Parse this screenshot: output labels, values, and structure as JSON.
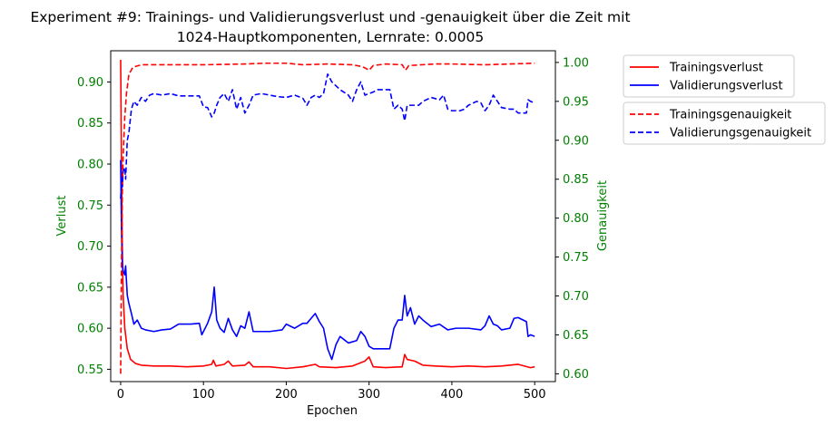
{
  "chart_data": {
    "type": "line",
    "title": "Experiment #9: Trainings- und Validierungsverlust und -genauigkeit über die Zeit mit",
    "subtitle": "1024-Hauptkomponenten, Lernrate: 0.0005",
    "xlabel": "Epochen",
    "ylabel_left": "Verlust",
    "ylabel_right": "Genauigkeit",
    "xlim": [
      -12,
      525
    ],
    "ylim_left": [
      0.535,
      0.938
    ],
    "ylim_right": [
      0.59,
      1.015
    ],
    "x_ticks": [
      0,
      100,
      200,
      300,
      400,
      500
    ],
    "y_ticks_left": [
      0.55,
      0.6,
      0.65,
      0.7,
      0.75,
      0.8,
      0.85,
      0.9
    ],
    "y_ticks_right": [
      0.6,
      0.65,
      0.7,
      0.75,
      0.8,
      0.85,
      0.9,
      0.95,
      1.0
    ],
    "axis_label_color": "#008000",
    "grid": false,
    "legend_placement": "outside-right",
    "series": [
      {
        "name": "Trainingsverlust",
        "axis": "left",
        "color": "#ff0000",
        "dash": "solid",
        "points": [
          [
            0,
            0.927
          ],
          [
            1,
            0.8
          ],
          [
            2,
            0.7
          ],
          [
            3,
            0.64
          ],
          [
            5,
            0.6
          ],
          [
            8,
            0.575
          ],
          [
            12,
            0.562
          ],
          [
            18,
            0.557
          ],
          [
            25,
            0.555
          ],
          [
            40,
            0.554
          ],
          [
            60,
            0.554
          ],
          [
            80,
            0.553
          ],
          [
            100,
            0.554
          ],
          [
            110,
            0.556
          ],
          [
            112,
            0.561
          ],
          [
            115,
            0.554
          ],
          [
            125,
            0.556
          ],
          [
            130,
            0.56
          ],
          [
            135,
            0.554
          ],
          [
            150,
            0.555
          ],
          [
            155,
            0.559
          ],
          [
            160,
            0.553
          ],
          [
            180,
            0.553
          ],
          [
            200,
            0.551
          ],
          [
            220,
            0.553
          ],
          [
            235,
            0.556
          ],
          [
            240,
            0.553
          ],
          [
            260,
            0.552
          ],
          [
            280,
            0.554
          ],
          [
            295,
            0.56
          ],
          [
            300,
            0.565
          ],
          [
            305,
            0.553
          ],
          [
            320,
            0.552
          ],
          [
            340,
            0.553
          ],
          [
            343,
            0.568
          ],
          [
            346,
            0.562
          ],
          [
            355,
            0.56
          ],
          [
            365,
            0.555
          ],
          [
            380,
            0.554
          ],
          [
            400,
            0.553
          ],
          [
            420,
            0.554
          ],
          [
            440,
            0.553
          ],
          [
            460,
            0.554
          ],
          [
            480,
            0.556
          ],
          [
            495,
            0.552
          ],
          [
            500,
            0.553
          ]
        ]
      },
      {
        "name": "Validierungsverlust",
        "axis": "left",
        "color": "#0000ff",
        "dash": "solid",
        "points": [
          [
            0,
            0.805
          ],
          [
            1,
            0.72
          ],
          [
            2,
            0.68
          ],
          [
            3,
            0.67
          ],
          [
            5,
            0.665
          ],
          [
            6,
            0.676
          ],
          [
            8,
            0.64
          ],
          [
            10,
            0.63
          ],
          [
            13,
            0.618
          ],
          [
            16,
            0.605
          ],
          [
            20,
            0.61
          ],
          [
            25,
            0.6
          ],
          [
            30,
            0.598
          ],
          [
            40,
            0.596
          ],
          [
            50,
            0.598
          ],
          [
            60,
            0.599
          ],
          [
            70,
            0.605
          ],
          [
            85,
            0.605
          ],
          [
            95,
            0.606
          ],
          [
            98,
            0.592
          ],
          [
            100,
            0.596
          ],
          [
            105,
            0.606
          ],
          [
            110,
            0.62
          ],
          [
            113,
            0.65
          ],
          [
            116,
            0.61
          ],
          [
            120,
            0.6
          ],
          [
            125,
            0.595
          ],
          [
            130,
            0.612
          ],
          [
            135,
            0.598
          ],
          [
            140,
            0.59
          ],
          [
            145,
            0.603
          ],
          [
            150,
            0.6
          ],
          [
            155,
            0.62
          ],
          [
            160,
            0.596
          ],
          [
            170,
            0.596
          ],
          [
            180,
            0.596
          ],
          [
            195,
            0.598
          ],
          [
            200,
            0.605
          ],
          [
            210,
            0.6
          ],
          [
            220,
            0.606
          ],
          [
            225,
            0.606
          ],
          [
            230,
            0.612
          ],
          [
            235,
            0.618
          ],
          [
            240,
            0.608
          ],
          [
            245,
            0.6
          ],
          [
            250,
            0.575
          ],
          [
            255,
            0.562
          ],
          [
            260,
            0.58
          ],
          [
            265,
            0.59
          ],
          [
            275,
            0.582
          ],
          [
            285,
            0.585
          ],
          [
            290,
            0.596
          ],
          [
            295,
            0.59
          ],
          [
            300,
            0.578
          ],
          [
            305,
            0.575
          ],
          [
            315,
            0.575
          ],
          [
            325,
            0.575
          ],
          [
            330,
            0.6
          ],
          [
            335,
            0.61
          ],
          [
            340,
            0.61
          ],
          [
            343,
            0.64
          ],
          [
            346,
            0.615
          ],
          [
            350,
            0.625
          ],
          [
            355,
            0.605
          ],
          [
            360,
            0.615
          ],
          [
            365,
            0.61
          ],
          [
            375,
            0.602
          ],
          [
            385,
            0.605
          ],
          [
            395,
            0.598
          ],
          [
            405,
            0.6
          ],
          [
            420,
            0.6
          ],
          [
            435,
            0.598
          ],
          [
            440,
            0.603
          ],
          [
            445,
            0.615
          ],
          [
            450,
            0.605
          ],
          [
            455,
            0.603
          ],
          [
            460,
            0.598
          ],
          [
            470,
            0.6
          ],
          [
            475,
            0.612
          ],
          [
            480,
            0.613
          ],
          [
            490,
            0.608
          ],
          [
            492,
            0.59
          ],
          [
            495,
            0.592
          ],
          [
            500,
            0.59
          ]
        ]
      },
      {
        "name": "Trainingsgenauigkeit",
        "axis": "right",
        "color": "#ff0000",
        "dash": "dashed",
        "points": [
          [
            0,
            0.6
          ],
          [
            1,
            0.74
          ],
          [
            2,
            0.83
          ],
          [
            3,
            0.88
          ],
          [
            5,
            0.93
          ],
          [
            7,
            0.96
          ],
          [
            10,
            0.985
          ],
          [
            15,
            0.994
          ],
          [
            25,
            0.997
          ],
          [
            50,
            0.997
          ],
          [
            100,
            0.997
          ],
          [
            150,
            0.998
          ],
          [
            175,
            0.999
          ],
          [
            200,
            0.999
          ],
          [
            220,
            0.997
          ],
          [
            250,
            0.998
          ],
          [
            280,
            0.997
          ],
          [
            290,
            0.995
          ],
          [
            295,
            0.993
          ],
          [
            300,
            0.99
          ],
          [
            305,
            0.996
          ],
          [
            320,
            0.998
          ],
          [
            340,
            0.997
          ],
          [
            344,
            0.99
          ],
          [
            348,
            0.996
          ],
          [
            380,
            0.998
          ],
          [
            400,
            0.998
          ],
          [
            440,
            0.997
          ],
          [
            470,
            0.998
          ],
          [
            500,
            0.999
          ]
        ]
      },
      {
        "name": "Validierungsgenauigkeit",
        "axis": "right",
        "color": "#0000ff",
        "dash": "dashed",
        "points": [
          [
            0,
            0.825
          ],
          [
            1,
            0.85
          ],
          [
            2,
            0.84
          ],
          [
            3,
            0.86
          ],
          [
            5,
            0.865
          ],
          [
            6,
            0.85
          ],
          [
            8,
            0.9
          ],
          [
            10,
            0.91
          ],
          [
            13,
            0.94
          ],
          [
            16,
            0.95
          ],
          [
            20,
            0.945
          ],
          [
            25,
            0.955
          ],
          [
            30,
            0.95
          ],
          [
            35,
            0.958
          ],
          [
            40,
            0.96
          ],
          [
            50,
            0.958
          ],
          [
            60,
            0.96
          ],
          [
            70,
            0.957
          ],
          [
            85,
            0.957
          ],
          [
            95,
            0.957
          ],
          [
            100,
            0.943
          ],
          [
            105,
            0.942
          ],
          [
            110,
            0.93
          ],
          [
            113,
            0.935
          ],
          [
            116,
            0.945
          ],
          [
            120,
            0.955
          ],
          [
            125,
            0.96
          ],
          [
            130,
            0.95
          ],
          [
            135,
            0.965
          ],
          [
            140,
            0.94
          ],
          [
            145,
            0.955
          ],
          [
            150,
            0.935
          ],
          [
            155,
            0.945
          ],
          [
            160,
            0.958
          ],
          [
            170,
            0.96
          ],
          [
            180,
            0.958
          ],
          [
            190,
            0.956
          ],
          [
            200,
            0.955
          ],
          [
            210,
            0.958
          ],
          [
            220,
            0.954
          ],
          [
            225,
            0.945
          ],
          [
            230,
            0.955
          ],
          [
            235,
            0.958
          ],
          [
            240,
            0.955
          ],
          [
            245,
            0.96
          ],
          [
            250,
            0.985
          ],
          [
            255,
            0.975
          ],
          [
            260,
            0.97
          ],
          [
            265,
            0.965
          ],
          [
            275,
            0.958
          ],
          [
            280,
            0.95
          ],
          [
            285,
            0.965
          ],
          [
            290,
            0.975
          ],
          [
            295,
            0.958
          ],
          [
            300,
            0.96
          ],
          [
            305,
            0.962
          ],
          [
            310,
            0.965
          ],
          [
            320,
            0.965
          ],
          [
            325,
            0.965
          ],
          [
            330,
            0.94
          ],
          [
            335,
            0.945
          ],
          [
            340,
            0.94
          ],
          [
            343,
            0.925
          ],
          [
            346,
            0.945
          ],
          [
            350,
            0.945
          ],
          [
            360,
            0.945
          ],
          [
            365,
            0.95
          ],
          [
            375,
            0.955
          ],
          [
            385,
            0.952
          ],
          [
            390,
            0.958
          ],
          [
            395,
            0.94
          ],
          [
            400,
            0.938
          ],
          [
            410,
            0.938
          ],
          [
            415,
            0.94
          ],
          [
            420,
            0.945
          ],
          [
            430,
            0.95
          ],
          [
            435,
            0.948
          ],
          [
            440,
            0.938
          ],
          [
            445,
            0.945
          ],
          [
            450,
            0.958
          ],
          [
            455,
            0.95
          ],
          [
            460,
            0.942
          ],
          [
            470,
            0.94
          ],
          [
            475,
            0.94
          ],
          [
            480,
            0.935
          ],
          [
            490,
            0.935
          ],
          [
            492,
            0.952
          ],
          [
            495,
            0.95
          ],
          [
            500,
            0.948
          ]
        ]
      }
    ]
  }
}
